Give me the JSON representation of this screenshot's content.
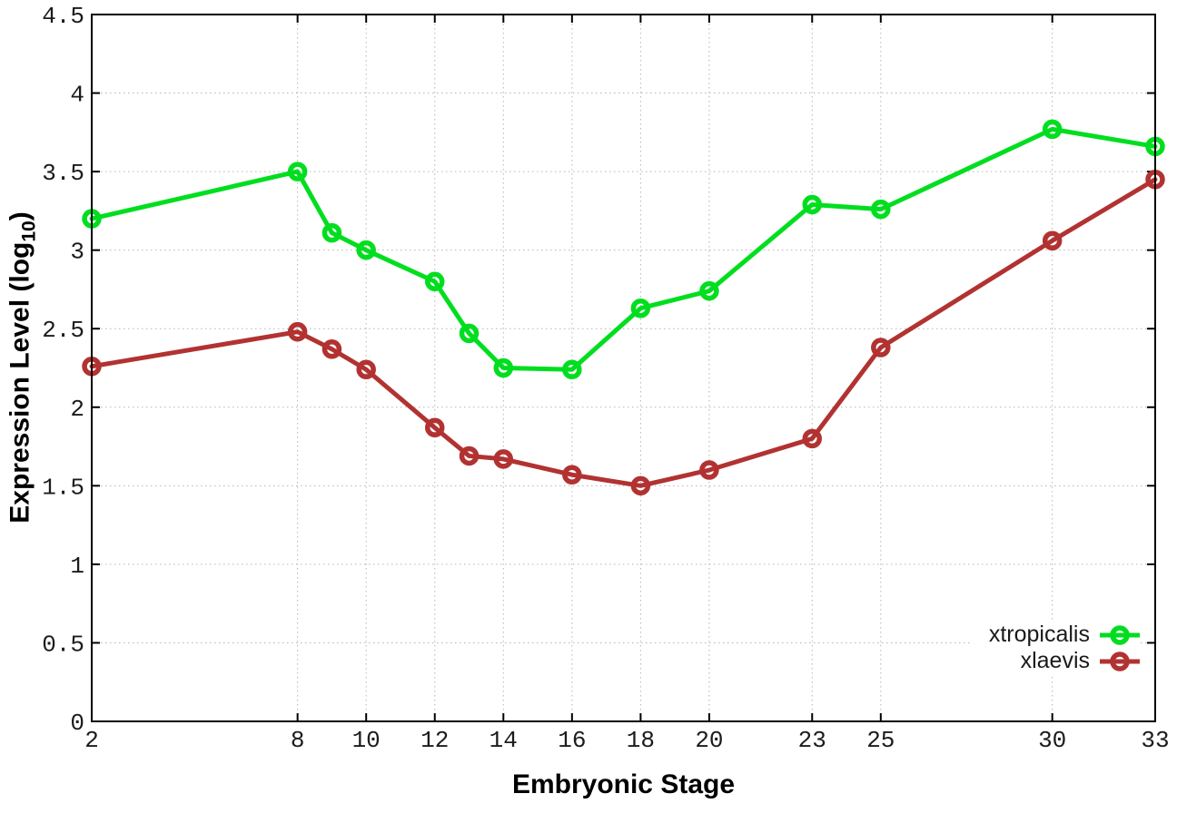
{
  "chart_data": {
    "type": "line",
    "title": "",
    "xlabel": "Embryonic Stage",
    "ylabel": {
      "main": "Expression Level (log",
      "sub": "10",
      "end": ")"
    },
    "xlim": [
      2,
      33
    ],
    "ylim": [
      0,
      4.5
    ],
    "x_ticks": [
      2,
      8,
      10,
      12,
      14,
      16,
      18,
      20,
      23,
      25,
      30,
      33
    ],
    "y_ticks": [
      0,
      0.5,
      1,
      1.5,
      2,
      2.5,
      3,
      3.5,
      4,
      4.5
    ],
    "y_tick_labels": [
      "0",
      "0.5",
      "1",
      "1.5",
      "2",
      "2.5",
      "3",
      "3.5",
      "4",
      "4.5"
    ],
    "grid": true,
    "legend_position": "bottom-right",
    "marker": "open-circle",
    "x": [
      2,
      8,
      9,
      10,
      12,
      13,
      14,
      16,
      18,
      20,
      23,
      25,
      30,
      33
    ],
    "series": [
      {
        "name": "xtropicalis",
        "color": "#00DE1F",
        "values": [
          3.2,
          3.5,
          3.11,
          3.0,
          2.8,
          2.47,
          2.25,
          2.24,
          2.63,
          2.74,
          3.29,
          3.26,
          3.77,
          3.66
        ]
      },
      {
        "name": "xlaevis",
        "color": "#B23232",
        "values": [
          2.26,
          2.48,
          2.37,
          2.24,
          1.87,
          1.69,
          1.67,
          1.57,
          1.5,
          1.6,
          1.8,
          2.38,
          3.06,
          3.45
        ]
      }
    ],
    "colors": {
      "grid": "#b4b4b4",
      "border": "#000000",
      "tick_text": "#1c1c1c"
    }
  }
}
